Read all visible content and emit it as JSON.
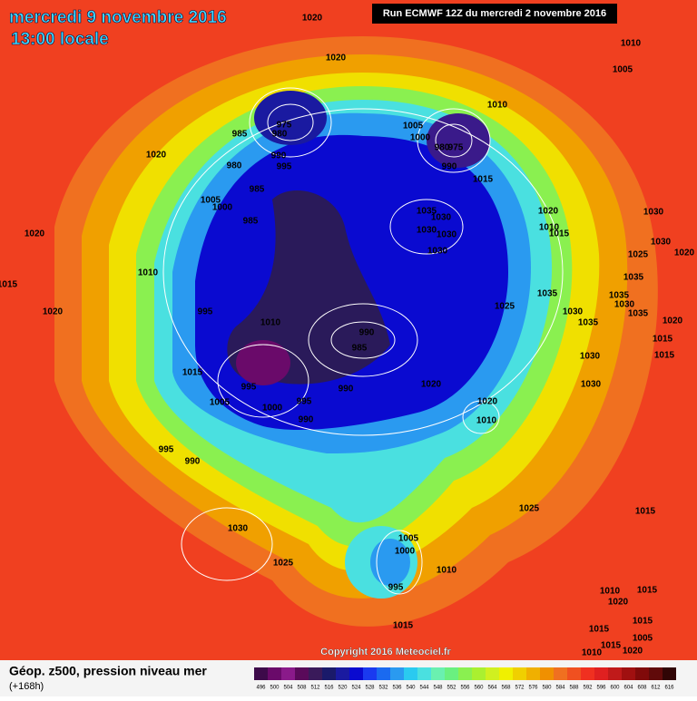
{
  "header": {
    "date": "mercredi 9 novembre 2016",
    "time": "13:00 locale",
    "run": "Run ECMWF 12Z du mercredi 2 novembre 2016"
  },
  "footer": {
    "title": "Géop. z500, pression niveau mer",
    "lead": "(+168h)",
    "copyright": "Copyright 2016 Meteociel.fr"
  },
  "colorbar": {
    "values": [
      496,
      500,
      504,
      508,
      512,
      516,
      520,
      524,
      528,
      532,
      536,
      540,
      544,
      548,
      552,
      556,
      560,
      564,
      568,
      572,
      576,
      580,
      584,
      588,
      592,
      596,
      600,
      604,
      608,
      612,
      616
    ],
    "colors": [
      "#3d0a4a",
      "#6a0a6a",
      "#8a1a8a",
      "#5a0a5a",
      "#3a1a5a",
      "#1a1a6a",
      "#1a1aa0",
      "#0a0ad0",
      "#1a3af0",
      "#1a6af0",
      "#2a9af0",
      "#2acaf0",
      "#4ae0e0",
      "#6af0b0",
      "#6af080",
      "#8af050",
      "#aaf030",
      "#d0f020",
      "#f0f000",
      "#f0d000",
      "#f0b000",
      "#f09000",
      "#f07020",
      "#f05020",
      "#f03020",
      "#e02020",
      "#c01a1a",
      "#a01010",
      "#800a0a",
      "#600a0a",
      "#300505"
    ]
  },
  "isobar_labels": [
    "1020",
    "1020",
    "1010",
    "1005",
    "1010",
    "975",
    "985",
    "980",
    "1005",
    "1000",
    "980",
    "975",
    "990",
    "1015",
    "1020",
    "990",
    "995",
    "980",
    "985",
    "1005",
    "1000",
    "985",
    "1035",
    "1030",
    "1030",
    "1030",
    "1030",
    "1020",
    "1010",
    "1015",
    "1030",
    "1020",
    "1030",
    "1020",
    "1025",
    "1010",
    "1035",
    "1015",
    "1035",
    "1035",
    "1030",
    "1035",
    "1025",
    "1030",
    "1035",
    "1020",
    "995",
    "1010",
    "990",
    "985",
    "1015",
    "1020",
    "1015",
    "1030",
    "1015",
    "1020",
    "990",
    "995",
    "1005",
    "995",
    "1000",
    "1020",
    "1010",
    "990",
    "1030",
    "995",
    "990",
    "1025",
    "1015",
    "1030",
    "1025",
    "1005",
    "1000",
    "1010",
    "995",
    "1015",
    "1020",
    "1015",
    "1010",
    "1015",
    "1015",
    "1005",
    "1010",
    "1015",
    "1020"
  ]
}
